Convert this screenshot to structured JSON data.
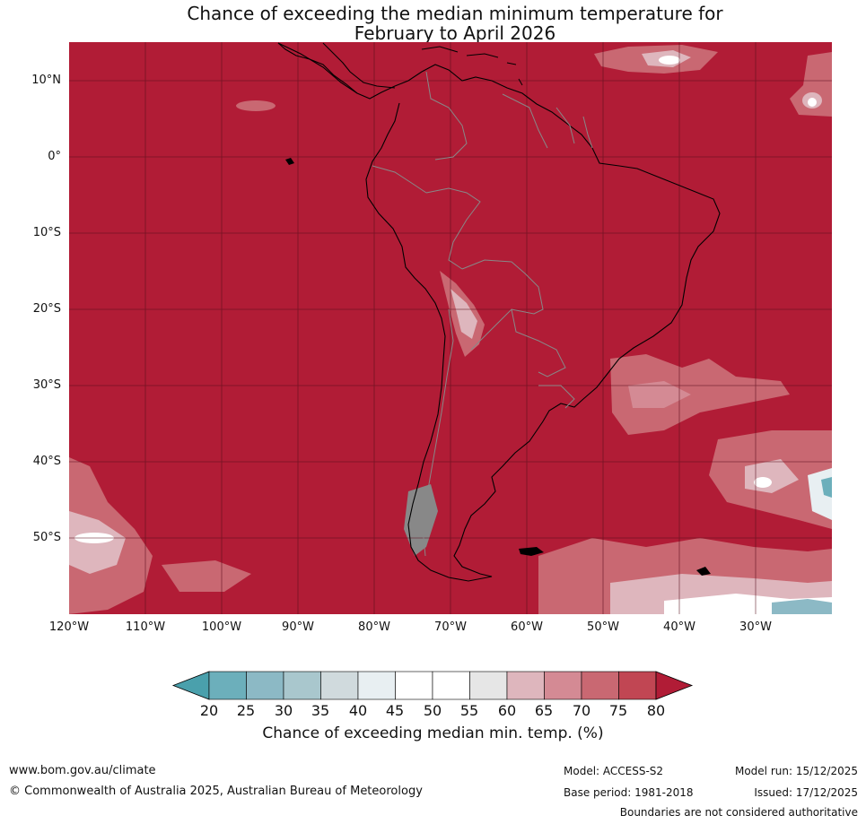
{
  "title": {
    "line1": "Chance of exceeding the median minimum temperature for",
    "line2": "February to April 2026"
  },
  "map": {
    "ocean_color": "#b11c36",
    "grid_line_color": "#5a0f1c",
    "coast_color": "#000000",
    "border_color": "#888888",
    "lat_labels": [
      "10°N",
      "0°",
      "10°S",
      "20°S",
      "30°S",
      "40°S",
      "50°S"
    ],
    "lon_labels": [
      "120°W",
      "110°W",
      "100°W",
      "90°W",
      "80°W",
      "70°W",
      "60°W",
      "50°W",
      "40°W",
      "30°W"
    ]
  },
  "colorbar": {
    "ticks": [
      "20",
      "25",
      "30",
      "35",
      "40",
      "45",
      "50",
      "55",
      "60",
      "65",
      "70",
      "75",
      "80"
    ],
    "colors": [
      "#4aa0ac",
      "#6cafbb",
      "#8cb9c5",
      "#a9c7cd",
      "#d0dadd",
      "#e8eff2",
      "#ffffff",
      "#ffffff",
      "#e6e6e6",
      "#deb6bd",
      "#d48a94",
      "#c96872",
      "#c14653",
      "#b11c36"
    ],
    "label": "Chance of exceeding median min. temp. (%)"
  },
  "footer": {
    "website": "www.bom.gov.au/climate",
    "copyright": "© Commonwealth of Australia 2025, Australian Bureau of Meteorology",
    "model": "Model: ACCESS-S2",
    "base_period": "Base period: 1981-2018",
    "model_run": "Model run: 15/12/2025",
    "issued": "Issued: 17/12/2025",
    "disclaimer": "Boundaries are not considered authoritative"
  }
}
